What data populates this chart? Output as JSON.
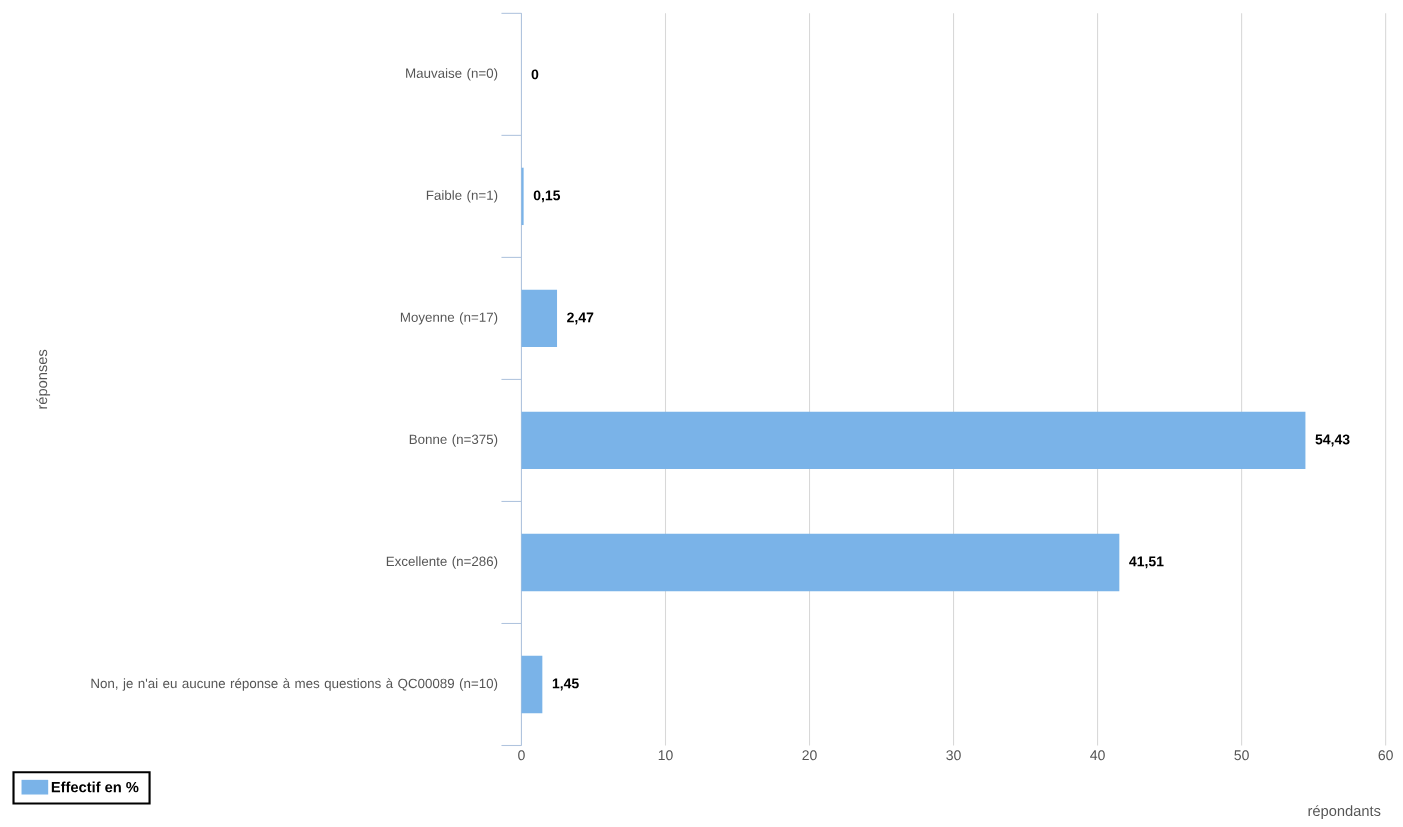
{
  "chart_data": {
    "type": "bar",
    "orientation": "horizontal",
    "xlabel": "répondants",
    "ylabel": "réponses",
    "categories": [
      "Mauvaise (n=0)",
      "Faible (n=1)",
      "Moyenne (n=17)",
      "Bonne (n=375)",
      "Excellente (n=286)",
      "Non, je n'ai eu aucune réponse à mes questions à QC00089 (n=10)"
    ],
    "series": [
      {
        "name": "Effectif en %",
        "color": "#7ab3e8",
        "values": [
          0,
          0.15,
          2.47,
          54.43,
          41.51,
          1.45
        ],
        "value_labels": [
          "0",
          "0,15",
          "2,47",
          "54,43",
          "41,51",
          "1,45"
        ]
      }
    ],
    "xlim": [
      0,
      60
    ],
    "xticks": [
      0,
      10,
      20,
      30,
      40,
      50,
      60
    ],
    "grid": "x",
    "legend": "bottom left"
  }
}
